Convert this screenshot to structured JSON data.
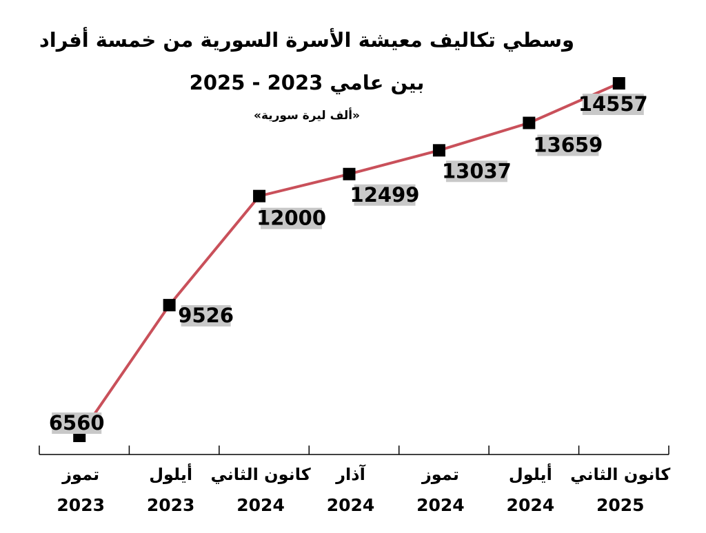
{
  "chart_data": {
    "type": "line",
    "title": "وسطي تكاليف معيشة الأسرة السورية من خمسة أفراد",
    "subtitle": "بين عامي 2023 - 2025",
    "unit": "«ألف ليرة سورية»",
    "categories": [
      [
        "تموز",
        "2023"
      ],
      [
        "أيلول",
        "2023"
      ],
      [
        "كانون الثاني",
        "2024"
      ],
      [
        "آذار",
        "2024"
      ],
      [
        "تموز",
        "2024"
      ],
      [
        "أيلول",
        "2024"
      ],
      [
        "كانون الثاني",
        "2025"
      ]
    ],
    "series": [
      {
        "color": "#c9505a",
        "values": [
          6560,
          9526,
          12000,
          12499,
          13037,
          13659,
          14557
        ]
      }
    ]
  }
}
